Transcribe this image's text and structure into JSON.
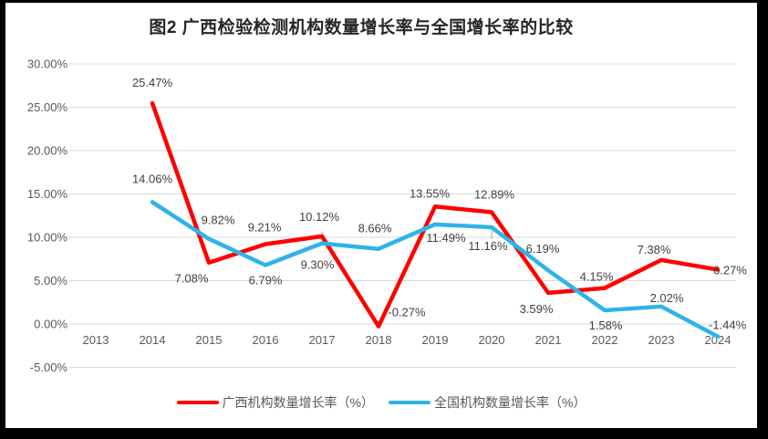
{
  "title": "图2 广西检验检测机构数量增长率与全国增长率的比较",
  "chart_data": {
    "type": "line",
    "title": "图2 广西检验检测机构数量增长率与全国增长率的比较",
    "categories": [
      "2013",
      "2014",
      "2015",
      "2016",
      "2017",
      "2018",
      "2019",
      "2020",
      "2021",
      "2022",
      "2023",
      "2024"
    ],
    "series": [
      {
        "name": "广西机构数量增长率（%）",
        "color": "#FF0000",
        "values": [
          null,
          25.47,
          7.08,
          9.21,
          10.12,
          -0.27,
          13.55,
          12.89,
          3.59,
          4.15,
          7.38,
          6.27
        ]
      },
      {
        "name": "全国机构数量增长率（%）",
        "color": "#2EB3E9",
        "values": [
          null,
          14.06,
          9.82,
          6.79,
          9.3,
          8.66,
          11.49,
          11.16,
          6.19,
          1.58,
          2.02,
          -1.44
        ]
      }
    ],
    "data_label_suffix": "%",
    "data_label_decimals": 2,
    "ylim": [
      -5,
      30
    ],
    "ytick_step": 5,
    "ytick_values": [
      30,
      25,
      20,
      15,
      10,
      5,
      0,
      -5
    ],
    "ytick_labels": [
      "30.00%",
      "25.00%",
      "20.00%",
      "15.00%",
      "10.00%",
      "5.00%",
      "0.00%",
      "-5.00%"
    ],
    "grid": true,
    "gridline_color": "#D9D9D9",
    "leader_tick_color": "#A6A6A6",
    "legend_position": "bottom",
    "label_layout": {
      "series0": [
        null,
        [
          0,
          -18
        ],
        [
          -19,
          22
        ],
        [
          -1,
          -14
        ],
        [
          -3,
          -17
        ],
        [
          31,
          -11
        ],
        [
          -6,
          -10
        ],
        [
          3,
          -15
        ],
        [
          -13,
          22
        ],
        [
          -9,
          -8
        ],
        [
          -8,
          -7
        ],
        [
          -5,
          5,
          "start"
        ]
      ],
      "series1": [
        null,
        [
          0,
          -21
        ],
        [
          10,
          -16
        ],
        [
          0,
          21
        ],
        [
          -5,
          28
        ],
        [
          -4,
          -18
        ],
        [
          12,
          19
        ],
        [
          -4,
          25
        ],
        [
          -6,
          -19
        ],
        [
          1,
          21
        ],
        [
          6,
          -5
        ],
        [
          -10,
          -8,
          "start"
        ]
      ]
    },
    "leader_ticks": [
      {
        "series": 1,
        "x_index": 4,
        "dy1": -13,
        "dy2": -3
      },
      {
        "series": 1,
        "x_index": 7,
        "dy1": 3,
        "dy2": 13
      }
    ]
  },
  "legend": {
    "items": [
      {
        "label": "广西机构数量增长率（%）",
        "color": "#FF0000"
      },
      {
        "label": "全国机构数量增长率（%）",
        "color": "#2EB3E9"
      }
    ]
  }
}
